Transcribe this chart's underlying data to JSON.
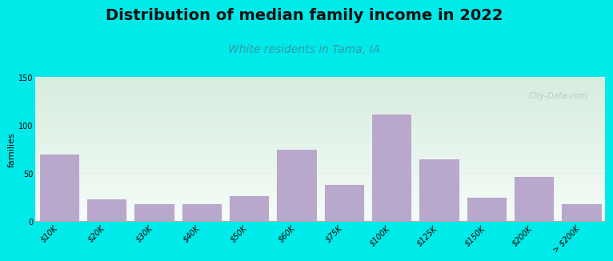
{
  "title": "Distribution of median family income in 2022",
  "subtitle": "White residents in Tama, IA",
  "ylabel": "families",
  "categories": [
    "$10K",
    "$20K",
    "$30K",
    "$40K",
    "$50K",
    "$60K",
    "$75K",
    "$100K",
    "$125K",
    "$150K",
    "$200K",
    "> $200K"
  ],
  "values": [
    70,
    23,
    18,
    18,
    27,
    75,
    38,
    112,
    65,
    25,
    47,
    18
  ],
  "bar_color": "#b8a8cc",
  "bar_edge_color": "#ffffff",
  "ylim": [
    0,
    150
  ],
  "yticks": [
    0,
    50,
    100,
    150
  ],
  "background_outer": "#00eaea",
  "plot_bg_color_top": "#d8ede0",
  "plot_bg_color_bottom": "#f0f8f4",
  "title_fontsize": 14,
  "title_color": "#111111",
  "subtitle_fontsize": 10,
  "subtitle_color": "#3399aa",
  "watermark": "City-Data.com",
  "ylabel_fontsize": 8,
  "tick_fontsize": 7,
  "grid_color": "#e8ece8",
  "spine_color": "#aaaaaa"
}
